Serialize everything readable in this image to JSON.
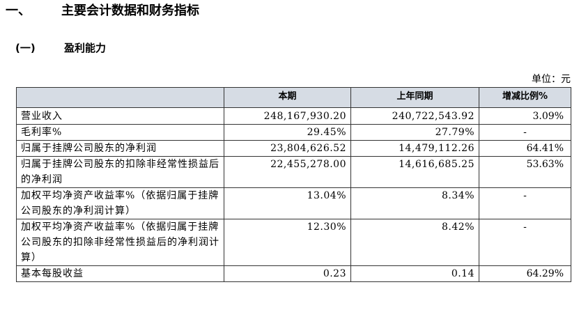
{
  "heading1": {
    "num": "一、",
    "title": "主要会计数据和财务指标"
  },
  "heading2": {
    "num": "(一)",
    "title": "盈利能力"
  },
  "unit_label": "单位：元",
  "table": {
    "headers": [
      "",
      "本期",
      "上年同期",
      "增减比例%"
    ],
    "rows": [
      {
        "label": "营业收入",
        "current": "248,167,930.20",
        "previous": "240,722,543.92",
        "change": "3.09%"
      },
      {
        "label": "毛利率%",
        "current": "29.45%",
        "previous": "27.79%",
        "change": "-"
      },
      {
        "label": "归属于挂牌公司股东的净利润",
        "current": "23,804,626.52",
        "previous": "14,479,112.26",
        "change": "64.41%"
      },
      {
        "label": "归属于挂牌公司股东的扣除非经常性损益后的净利润",
        "current": "22,455,278.00",
        "previous": "14,616,685.25",
        "change": "53.63%"
      },
      {
        "label": "加权平均净资产收益率%（依据归属于挂牌公司股东的净利润计算）",
        "current": "13.04%",
        "previous": "8.34%",
        "change": "-"
      },
      {
        "label": "加权平均净资产收益率%（依据归属于挂牌公司股东的扣除非经常性损益后的净利润计算）",
        "current": "12.30%",
        "previous": "8.42%",
        "change": "-"
      },
      {
        "label": "基本每股收益",
        "current": "0.23",
        "previous": "0.14",
        "change": "64.29%"
      }
    ]
  }
}
